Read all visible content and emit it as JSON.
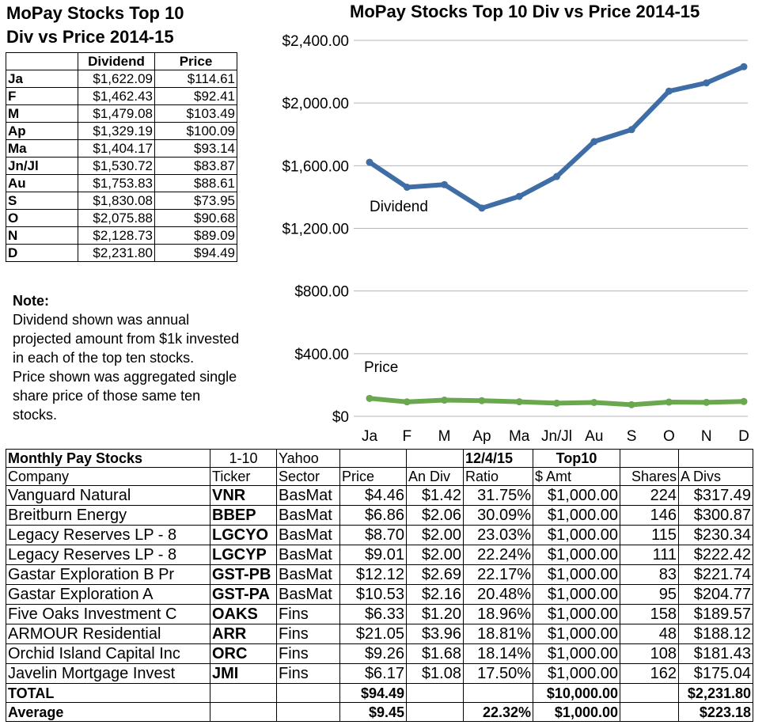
{
  "left_title": {
    "line1": "MoPay Stocks Top 10",
    "line2": "Div vs Price 2014-15"
  },
  "summary_table": {
    "headers": [
      "Dividend",
      "Price"
    ],
    "rows": [
      {
        "label": "Ja",
        "dividend": "$1,622.09",
        "price": "$114.61"
      },
      {
        "label": "F",
        "dividend": "$1,462.43",
        "price": "$92.41"
      },
      {
        "label": "M",
        "dividend": "$1,479.08",
        "price": "$103.49"
      },
      {
        "label": "Ap",
        "dividend": "$1,329.19",
        "price": "$100.09"
      },
      {
        "label": "Ma",
        "dividend": "$1,404.17",
        "price": "$93.14"
      },
      {
        "label": "Jn/Jl",
        "dividend": "$1,530.72",
        "price": "$83.87"
      },
      {
        "label": "Au",
        "dividend": "$1,753.83",
        "price": "$88.61"
      },
      {
        "label": "S",
        "dividend": "$1,830.08",
        "price": "$73.95"
      },
      {
        "label": "O",
        "dividend": "$2,075.88",
        "price": "$90.68"
      },
      {
        "label": "N",
        "dividend": "$2,128.73",
        "price": "$89.09"
      },
      {
        "label": "D",
        "dividend": "$2,231.80",
        "price": "$94.49"
      }
    ]
  },
  "note": {
    "heading": "Note:",
    "line1": "Dividend shown was annual",
    "line2": "projected amount from $1k invested",
    "line3": "in each of the top ten stocks.",
    "line4": "Price shown was aggregated single",
    "line5": "share price of those same ten",
    "line6": "stocks."
  },
  "chart_data": {
    "type": "line",
    "title": "MoPay Stocks Top 10 Div vs Price 2014-15",
    "categories": [
      "Ja",
      "F",
      "M",
      "Ap",
      "Ma",
      "Jn/Jl",
      "Au",
      "S",
      "O",
      "N",
      "D"
    ],
    "ylim": [
      0,
      2400
    ],
    "yticks": [
      0,
      400,
      800,
      1200,
      1600,
      2000,
      2400
    ],
    "ytick_labels": [
      "$0",
      "$400.00",
      "$800.00",
      "$1,200.00",
      "$1,600.00",
      "$2,000.00",
      "$2,400.00"
    ],
    "grid": true,
    "series": [
      {
        "name": "Dividend",
        "color": "#3f6da5",
        "values": [
          1622.09,
          1462.43,
          1479.08,
          1329.19,
          1404.17,
          1530.72,
          1753.83,
          1830.08,
          2075.88,
          2128.73,
          2231.8
        ]
      },
      {
        "name": "Price",
        "color": "#6aa84f",
        "values": [
          114.61,
          92.41,
          103.49,
          100.09,
          93.14,
          83.87,
          88.61,
          73.95,
          90.68,
          89.09,
          94.49
        ]
      }
    ]
  },
  "stock_table": {
    "header": {
      "title": "Monthly Pay Stocks",
      "range": "1-10",
      "source": "Yahoo",
      "date": "12/4/15",
      "label": "Top10"
    },
    "columns": [
      "Company",
      "Ticker",
      "Sector",
      "Price",
      "An Div",
      "Ratio",
      "$ Amt",
      "Shares",
      "A Divs"
    ],
    "rows": [
      {
        "company": "Vanguard Natural",
        "ticker": "VNR",
        "sector": "BasMat",
        "price": "$4.46",
        "andiv": "$1.42",
        "ratio": "31.75%",
        "amt": "$1,000.00",
        "shares": "224",
        "adivs": "$317.49"
      },
      {
        "company": "Breitburn Energy",
        "ticker": "BBEP",
        "sector": "BasMat",
        "price": "$6.86",
        "andiv": "$2.06",
        "ratio": "30.09%",
        "amt": "$1,000.00",
        "shares": "146",
        "adivs": "$300.87"
      },
      {
        "company": "Legacy Reserves LP - 8",
        "ticker": "LGCYO",
        "sector": "BasMat",
        "price": "$8.70",
        "andiv": "$2.00",
        "ratio": "23.03%",
        "amt": "$1,000.00",
        "shares": "115",
        "adivs": "$230.34"
      },
      {
        "company": "Legacy Reserves LP - 8",
        "ticker": "LGCYP",
        "sector": "BasMat",
        "price": "$9.01",
        "andiv": "$2.00",
        "ratio": "22.24%",
        "amt": "$1,000.00",
        "shares": "111",
        "adivs": "$222.42"
      },
      {
        "company": "Gastar Exploration B Pr",
        "ticker": "GST-PB",
        "sector": "BasMat",
        "price": "$12.12",
        "andiv": "$2.69",
        "ratio": "22.17%",
        "amt": "$1,000.00",
        "shares": "83",
        "adivs": "$221.74"
      },
      {
        "company": "Gastar Exploration A",
        "ticker": "GST-PA",
        "sector": "BasMat",
        "price": "$10.53",
        "andiv": "$2.16",
        "ratio": "20.48%",
        "amt": "$1,000.00",
        "shares": "95",
        "adivs": "$204.77"
      },
      {
        "company": "Five Oaks Investment C",
        "ticker": "OAKS",
        "sector": "Fins",
        "price": "$6.33",
        "andiv": "$1.20",
        "ratio": "18.96%",
        "amt": "$1,000.00",
        "shares": "158",
        "adivs": "$189.57"
      },
      {
        "company": "ARMOUR Residential",
        "ticker": "ARR",
        "sector": "Fins",
        "price": "$21.05",
        "andiv": "$3.96",
        "ratio": "18.81%",
        "amt": "$1,000.00",
        "shares": "48",
        "adivs": "$188.12"
      },
      {
        "company": "Orchid Island Capital Inc",
        "ticker": "ORC",
        "sector": "Fins",
        "price": "$9.26",
        "andiv": "$1.68",
        "ratio": "18.14%",
        "amt": "$1,000.00",
        "shares": "108",
        "adivs": "$181.43"
      },
      {
        "company": "Javelin Mortgage Invest",
        "ticker": "JMI",
        "sector": "Fins",
        "price": "$6.17",
        "andiv": "$1.08",
        "ratio": "17.50%",
        "amt": "$1,000.00",
        "shares": "162",
        "adivs": "$175.04"
      }
    ],
    "total": {
      "label": "TOTAL",
      "price": "$94.49",
      "amt": "$10,000.00",
      "adivs": "$2,231.80"
    },
    "average": {
      "label": "Average",
      "price": "$9.45",
      "ratio": "22.32%",
      "amt": "$1,000.00",
      "adivs": "$223.18"
    }
  }
}
